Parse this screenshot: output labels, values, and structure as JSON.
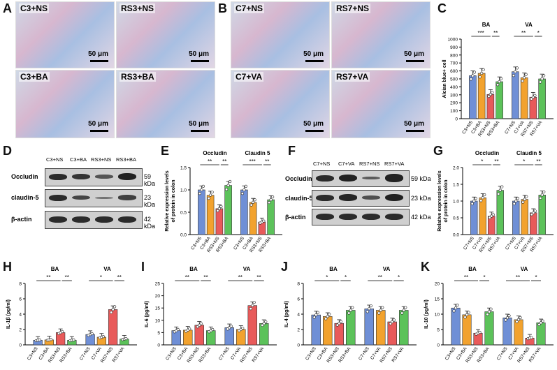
{
  "panels": {
    "A": "A",
    "B": "B",
    "C": "C",
    "D": "D",
    "E": "E",
    "F": "F",
    "G": "G",
    "H": "H",
    "I": "I",
    "J": "J",
    "K": "K"
  },
  "micrographs": [
    {
      "label": "C3+NS",
      "scale": "50 μm"
    },
    {
      "label": "RS3+NS",
      "scale": "50 μm"
    },
    {
      "label": "C3+BA",
      "scale": "50 μm"
    },
    {
      "label": "RS3+BA",
      "scale": "50 μm"
    },
    {
      "label": "C7+NS",
      "scale": "50 μm"
    },
    {
      "label": "RS7+NS",
      "scale": "50 μm"
    },
    {
      "label": "C7+VA",
      "scale": "50 μm"
    },
    {
      "label": "RS7+VA",
      "scale": "50 μm"
    }
  ],
  "blotD": {
    "lanes": [
      "C3+NS",
      "C3+BA",
      "RS3+NS",
      "RS3+BA"
    ],
    "rows": [
      {
        "name": "Occludin",
        "kda": "59 kDa",
        "level": [
          1.0,
          0.9,
          0.6,
          1.1
        ]
      },
      {
        "name": "claudin-5",
        "kda": "23 kDa",
        "level": [
          1.0,
          0.75,
          0.3,
          0.8
        ]
      },
      {
        "name": "β-actin",
        "kda": "42 kDa",
        "level": [
          1,
          1,
          1,
          1
        ]
      }
    ]
  },
  "blotF": {
    "lanes": [
      "C7+NS",
      "C7+VA",
      "RS7+NS",
      "RS7+VA"
    ],
    "rows": [
      {
        "name": "Occludin",
        "kda": "59 kDa",
        "level": [
          1.0,
          1.1,
          0.55,
          1.3
        ]
      },
      {
        "name": "claudin-5",
        "kda": "23 kDa",
        "level": [
          1.0,
          1.05,
          0.65,
          1.15
        ]
      },
      {
        "name": "β-actin",
        "kda": "42 kDa",
        "level": [
          1,
          1,
          1,
          1
        ]
      }
    ]
  },
  "colors": {
    "c3": "#6f8fd6",
    "ba": "#f2a22e",
    "rs": "#e85a5a",
    "rsba": "#5cc25a"
  },
  "chart_data": [
    {
      "id": "C",
      "type": "bar",
      "ylabel": "Alcian blue+ cell",
      "ylim": [
        0,
        1000
      ],
      "yticks": [
        0,
        100,
        200,
        300,
        400,
        500,
        600,
        700,
        800,
        900,
        1000
      ],
      "groups": [
        {
          "name": "BA",
          "categories": [
            "C3+NS",
            "C3+BA",
            "RS3+NS",
            "RS3+BA"
          ],
          "values": [
            540,
            570,
            305,
            465
          ],
          "sig": [
            [
              "***",
              0,
              2
            ],
            [
              "**",
              2,
              3
            ]
          ]
        },
        {
          "name": "VA",
          "categories": [
            "C7+NS",
            "C7+VA",
            "RS7+NS",
            "RS7+VA"
          ],
          "values": [
            590,
            515,
            270,
            500
          ],
          "sig": [
            [
              "**",
              0,
              2
            ],
            [
              "*",
              2,
              3
            ]
          ]
        }
      ]
    },
    {
      "id": "E",
      "type": "bar",
      "ylabel": "Relative expression levels\nof protein in colon",
      "ylim": [
        0,
        1.5
      ],
      "yticks": [
        0.0,
        0.5,
        1.0,
        1.5
      ],
      "groups": [
        {
          "name": "Occludin",
          "categories": [
            "C3+NS",
            "C3+BA",
            "RS3+NS",
            "RS3+BA"
          ],
          "values": [
            1.0,
            0.88,
            0.58,
            1.1
          ],
          "sig": [
            [
              "**",
              0,
              2
            ],
            [
              "**",
              2,
              3
            ]
          ]
        },
        {
          "name": "Claudin 5",
          "categories": [
            "C3+NS",
            "C3+BA",
            "RS3+NS",
            "RS3+BA"
          ],
          "values": [
            1.0,
            0.72,
            0.28,
            0.78
          ],
          "sig": [
            [
              "***",
              0,
              2
            ],
            [
              "**",
              2,
              3
            ]
          ]
        }
      ]
    },
    {
      "id": "G",
      "type": "bar",
      "ylabel": "Relative expression levels\nof protein in colon",
      "ylim": [
        0,
        2.0
      ],
      "yticks": [
        0.0,
        0.5,
        1.0,
        1.5,
        2.0
      ],
      "groups": [
        {
          "name": "Occludin",
          "categories": [
            "C7+NS",
            "C7+VA",
            "RS7+NS",
            "RS7+VA"
          ],
          "values": [
            1.0,
            1.1,
            0.55,
            1.32
          ],
          "sig": [
            [
              "*",
              0,
              2
            ],
            [
              "**",
              2,
              3
            ]
          ]
        },
        {
          "name": "Claudin 5",
          "categories": [
            "C7+NS",
            "C7+VA",
            "RS7+NS",
            "RS7+VA"
          ],
          "values": [
            1.0,
            1.05,
            0.65,
            1.18
          ],
          "sig": [
            [
              "*",
              0,
              2
            ],
            [
              "**",
              2,
              3
            ]
          ]
        }
      ]
    },
    {
      "id": "H",
      "type": "bar",
      "ylabel": "IL-1β (pg/ml)",
      "ylim": [
        0,
        8
      ],
      "yticks": [
        0,
        2,
        4,
        6,
        8
      ],
      "groups": [
        {
          "name": "BA",
          "categories": [
            "C3+NS",
            "C3+BA",
            "RS3+NS",
            "RS3+BA"
          ],
          "values": [
            0.6,
            0.65,
            1.6,
            0.6
          ],
          "sig": [
            [
              "**",
              0,
              2
            ],
            [
              "**",
              2,
              3
            ]
          ]
        },
        {
          "name": "VA",
          "categories": [
            "C7+NS",
            "C7+VA",
            "RS7+NS",
            "RS7+VA"
          ],
          "values": [
            1.35,
            1.0,
            4.6,
            0.75
          ],
          "sig": [
            [
              "*",
              0,
              2
            ],
            [
              "**",
              2,
              3
            ]
          ]
        }
      ]
    },
    {
      "id": "I",
      "type": "bar",
      "ylabel": "IL-6 (pg/ml)",
      "ylim": [
        0,
        25
      ],
      "yticks": [
        0,
        5,
        10,
        15,
        20,
        25
      ],
      "groups": [
        {
          "name": "BA",
          "categories": [
            "C3+NS",
            "C3+BA",
            "RS3+NS",
            "RS3+BA"
          ],
          "values": [
            5.8,
            6.0,
            8.0,
            5.8
          ],
          "sig": [
            [
              "**",
              0,
              2
            ],
            [
              "**",
              2,
              3
            ]
          ]
        },
        {
          "name": "VA",
          "categories": [
            "C7+NS",
            "C7+VA",
            "RS7+NS",
            "RS7+VA"
          ],
          "values": [
            7.0,
            6.3,
            16.0,
            8.7
          ],
          "sig": [
            [
              "**",
              0,
              2
            ],
            [
              "**",
              2,
              3
            ]
          ]
        }
      ]
    },
    {
      "id": "J",
      "type": "bar",
      "ylabel": "IL-4 (pg/ml)",
      "ylim": [
        0,
        8
      ],
      "yticks": [
        0,
        2,
        4,
        6,
        8
      ],
      "groups": [
        {
          "name": "BA",
          "categories": [
            "C3+NS",
            "C3+BA",
            "RS3+NS",
            "RS3+BA"
          ],
          "values": [
            3.9,
            3.7,
            2.8,
            4.5
          ],
          "sig": [
            [
              "*",
              0,
              2
            ],
            [
              "*",
              2,
              3
            ]
          ]
        },
        {
          "name": "VA",
          "categories": [
            "C7+NS",
            "C7+VA",
            "RS7+NS",
            "RS7+VA"
          ],
          "values": [
            4.7,
            4.5,
            3.0,
            4.5
          ],
          "sig": [
            [
              "**",
              0,
              2
            ],
            [
              "*",
              2,
              3
            ]
          ]
        }
      ]
    },
    {
      "id": "K",
      "type": "bar",
      "ylabel": "IL-10 (pg/ml)",
      "ylim": [
        0,
        20
      ],
      "yticks": [
        0,
        5,
        10,
        15,
        20
      ],
      "groups": [
        {
          "name": "BA",
          "categories": [
            "C3+NS",
            "C3+BA",
            "RS3+NS",
            "RS3+BA"
          ],
          "values": [
            12.0,
            9.8,
            3.8,
            10.8
          ],
          "sig": [
            [
              "**",
              0,
              2
            ],
            [
              "*",
              2,
              3
            ]
          ]
        },
        {
          "name": "VA",
          "categories": [
            "C7+NS",
            "C7+VA",
            "RS7+NS",
            "RS7+VA"
          ],
          "values": [
            8.8,
            8.2,
            2.2,
            7.2
          ],
          "sig": [
            [
              "**",
              0,
              2
            ],
            [
              "*",
              2,
              3
            ]
          ]
        }
      ]
    }
  ]
}
